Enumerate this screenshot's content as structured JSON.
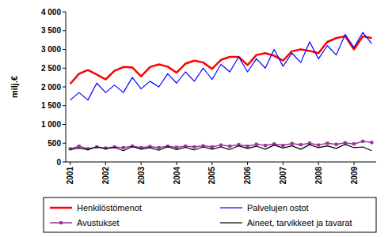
{
  "chart_data": {
    "type": "line",
    "y_label": "milj.€",
    "categories": [
      "2001",
      null,
      null,
      null,
      "2002",
      null,
      null,
      null,
      "2003",
      null,
      null,
      null,
      "2004",
      null,
      null,
      null,
      "2005",
      null,
      null,
      null,
      "2006",
      null,
      null,
      null,
      "2007",
      null,
      null,
      null,
      "2008",
      null,
      null,
      null,
      "2009",
      null,
      null
    ],
    "series": [
      {
        "name": "Henkilöstömenot",
        "color": "#ff0000",
        "line_style": "solid",
        "values": [
          2080,
          2350,
          2450,
          2330,
          2200,
          2430,
          2530,
          2520,
          2280,
          2530,
          2600,
          2540,
          2380,
          2620,
          2700,
          2650,
          2480,
          2720,
          2800,
          2800,
          2580,
          2850,
          2900,
          2830,
          2700,
          2950,
          3000,
          2960,
          2900,
          3200,
          3300,
          3350,
          3000,
          3350,
          3300
        ]
      },
      {
        "name": "Palvelujen ostot",
        "color": "#0000ff",
        "line_style": "solid",
        "values": [
          1650,
          1850,
          1650,
          2100,
          1850,
          2050,
          1850,
          2250,
          1950,
          2150,
          2000,
          2350,
          2100,
          2400,
          2150,
          2500,
          2200,
          2600,
          2400,
          2800,
          2400,
          2750,
          2500,
          3000,
          2550,
          2900,
          2650,
          3200,
          2750,
          3100,
          2850,
          3400,
          3050,
          3450,
          3150
        ]
      },
      {
        "name": "Avustukset",
        "color": "#993399",
        "line_style": "solid",
        "marker": "square",
        "values": [
          350,
          420,
          350,
          400,
          370,
          400,
          380,
          420,
          380,
          410,
          380,
          420,
          390,
          420,
          400,
          430,
          400,
          450,
          420,
          460,
          420,
          470,
          440,
          480,
          440,
          490,
          460,
          500,
          450,
          500,
          470,
          510,
          480,
          550,
          520
        ]
      },
      {
        "name": "Aineet, tarvikkeet ja tavarat",
        "color": "#000000",
        "line_style": "solid",
        "values": [
          330,
          370,
          330,
          400,
          350,
          390,
          300,
          410,
          340,
          380,
          310,
          410,
          330,
          390,
          320,
          400,
          340,
          400,
          330,
          430,
          360,
          420,
          340,
          450,
          370,
          430,
          340,
          460,
          380,
          430,
          360,
          470,
          380,
          400,
          300
        ]
      }
    ],
    "ylim": [
      0,
      4000
    ],
    "yticks": [
      0,
      500,
      {
        "value": 1000,
        "label": "1 000"
      },
      {
        "value": 1500,
        "label": "1 500"
      },
      {
        "value": 2000,
        "label": "2 000"
      },
      {
        "value": 2500,
        "label": "2 500"
      },
      {
        "value": 3000,
        "label": "3 000"
      },
      {
        "value": 3500,
        "label": "3 500"
      },
      {
        "value": 4000,
        "label": "4 000"
      }
    ],
    "grid": false,
    "legend": "bottom"
  }
}
